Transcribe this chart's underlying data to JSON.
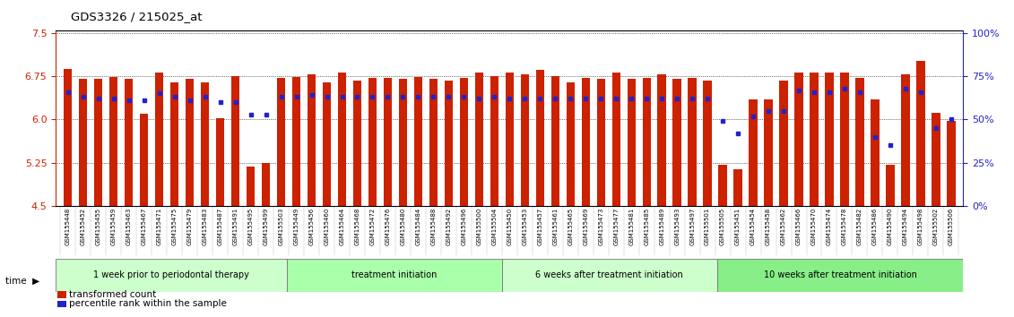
{
  "title": "GDS3326 / 215025_at",
  "y_min": 4.5,
  "y_max": 7.5,
  "y_ticks": [
    4.5,
    5.25,
    6.0,
    6.75,
    7.5
  ],
  "y_right_ticks": [
    0,
    25,
    50,
    75,
    100
  ],
  "y_right_labels": [
    "0%",
    "25%",
    "50%",
    "75%",
    "100%"
  ],
  "bar_color": "#cc2200",
  "marker_color": "#2222cc",
  "baseline": 4.5,
  "samples": [
    "GSM155448",
    "GSM155452",
    "GSM155455",
    "GSM155459",
    "GSM155463",
    "GSM155467",
    "GSM155471",
    "GSM155475",
    "GSM155479",
    "GSM155483",
    "GSM155487",
    "GSM155491",
    "GSM155495",
    "GSM155499",
    "GSM155503",
    "GSM155449",
    "GSM155456",
    "GSM155460",
    "GSM155464",
    "GSM155468",
    "GSM155472",
    "GSM155476",
    "GSM155480",
    "GSM155484",
    "GSM155488",
    "GSM155492",
    "GSM155496",
    "GSM155500",
    "GSM155504",
    "GSM155450",
    "GSM155453",
    "GSM155457",
    "GSM155461",
    "GSM155465",
    "GSM155469",
    "GSM155473",
    "GSM155477",
    "GSM155481",
    "GSM155485",
    "GSM155489",
    "GSM155493",
    "GSM155497",
    "GSM155501",
    "GSM155505",
    "GSM155451",
    "GSM155454",
    "GSM155458",
    "GSM155462",
    "GSM155466",
    "GSM155470",
    "GSM155474",
    "GSM155478",
    "GSM155482",
    "GSM155486",
    "GSM155490",
    "GSM155494",
    "GSM155498",
    "GSM155502",
    "GSM155506"
  ],
  "bar_values": [
    6.88,
    6.7,
    6.7,
    6.74,
    6.7,
    6.1,
    6.82,
    6.65,
    6.7,
    6.65,
    6.02,
    6.75,
    5.19,
    5.25,
    6.72,
    6.74,
    6.78,
    6.65,
    6.82,
    6.68,
    6.72,
    6.72,
    6.7,
    6.74,
    6.7,
    6.68,
    6.72,
    6.82,
    6.75,
    6.82,
    6.78,
    6.86,
    6.75,
    6.65,
    6.72,
    6.7,
    6.82,
    6.7,
    6.72,
    6.78,
    6.7,
    6.72,
    6.68,
    5.22,
    5.14,
    6.35,
    6.35,
    6.68,
    6.82,
    6.82,
    6.82,
    6.82,
    6.72,
    6.35,
    5.22,
    6.78,
    7.02,
    6.12,
    5.98
  ],
  "percentile_values": [
    66,
    63,
    62,
    62,
    61,
    61,
    65,
    63,
    61,
    63,
    60,
    60,
    53,
    53,
    63,
    63,
    64,
    63,
    63,
    63,
    63,
    63,
    63,
    63,
    63,
    63,
    63,
    62,
    63,
    62,
    62,
    62,
    62,
    62,
    62,
    62,
    62,
    62,
    62,
    62,
    62,
    62,
    62,
    49,
    42,
    52,
    55,
    55,
    67,
    66,
    66,
    68,
    66,
    40,
    35,
    68,
    66,
    45,
    50
  ],
  "groups": [
    {
      "label": "1 week prior to periodontal therapy",
      "start": 0,
      "end": 15,
      "color": "#ccffcc"
    },
    {
      "label": "treatment initiation",
      "start": 15,
      "end": 29,
      "color": "#aaffaa"
    },
    {
      "label": "6 weeks after treatment initiation",
      "start": 29,
      "end": 43,
      "color": "#ccffcc"
    },
    {
      "label": "10 weeks after treatment initiation",
      "start": 43,
      "end": 59,
      "color": "#88ee88"
    }
  ],
  "legend_red_label": "transformed count",
  "legend_blue_label": "percentile rank within the sample",
  "left_axis_color": "#cc2200",
  "right_axis_color": "#2222cc"
}
